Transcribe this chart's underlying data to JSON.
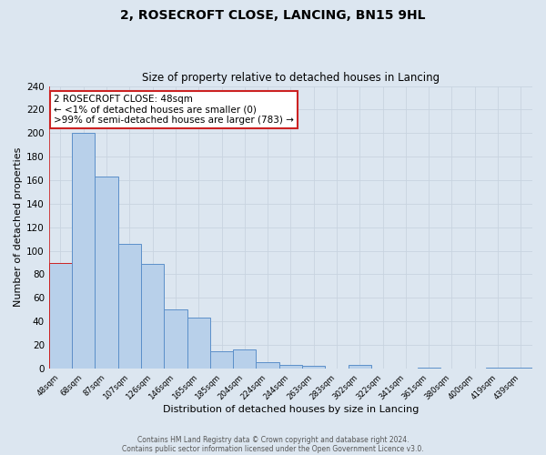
{
  "title": "2, ROSECROFT CLOSE, LANCING, BN15 9HL",
  "subtitle": "Size of property relative to detached houses in Lancing",
  "xlabel": "Distribution of detached houses by size in Lancing",
  "ylabel": "Number of detached properties",
  "bar_labels": [
    "48sqm",
    "68sqm",
    "87sqm",
    "107sqm",
    "126sqm",
    "146sqm",
    "165sqm",
    "185sqm",
    "204sqm",
    "224sqm",
    "244sqm",
    "263sqm",
    "283sqm",
    "302sqm",
    "322sqm",
    "341sqm",
    "361sqm",
    "380sqm",
    "400sqm",
    "419sqm",
    "439sqm"
  ],
  "bar_values": [
    90,
    200,
    163,
    106,
    89,
    50,
    43,
    15,
    16,
    5,
    3,
    2,
    0,
    3,
    0,
    0,
    1,
    0,
    0,
    1,
    1
  ],
  "highlight_bar_index": 0,
  "bar_color": "#b8d0ea",
  "bar_edge_color": "#5b8fc9",
  "highlight_edge_color": "#cc2222",
  "ylim": [
    0,
    240
  ],
  "yticks": [
    0,
    20,
    40,
    60,
    80,
    100,
    120,
    140,
    160,
    180,
    200,
    220,
    240
  ],
  "annotation_box_text": "2 ROSECROFT CLOSE: 48sqm\n← <1% of detached houses are smaller (0)\n>99% of semi-detached houses are larger (783) →",
  "annotation_box_color": "#ffffff",
  "annotation_box_edge_color": "#cc2222",
  "grid_color": "#c8d4e0",
  "background_color": "#dce6f0",
  "footer_line1": "Contains HM Land Registry data © Crown copyright and database right 2024.",
  "footer_line2": "Contains public sector information licensed under the Open Government Licence v3.0."
}
